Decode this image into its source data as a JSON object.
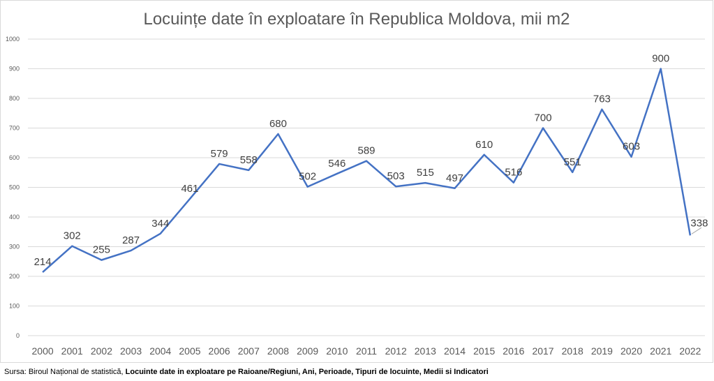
{
  "chart_data": {
    "type": "line",
    "title": "Locuințe date în exploatare în Republica Moldova, mii m2",
    "xlabel": "",
    "ylabel": "",
    "ylim": [
      0,
      1000
    ],
    "yticks": [
      "0",
      "100",
      "200",
      "300",
      "400",
      "500",
      "600",
      "700",
      "800",
      "900",
      "1000"
    ],
    "categories": [
      "2000",
      "2001",
      "2002",
      "2003",
      "2004",
      "2005",
      "2006",
      "2007",
      "2008",
      "2009",
      "2010",
      "2011",
      "2012",
      "2013",
      "2014",
      "2015",
      "2016",
      "2017",
      "2018",
      "2019",
      "2020",
      "2021",
      "2022"
    ],
    "series": [
      {
        "name": "Locuințe date în exploatare",
        "color": "#4472c4",
        "values": [
          214,
          302,
          255,
          287,
          344,
          461,
          579,
          558,
          680,
          502,
          546,
          589,
          503,
          515,
          497,
          610,
          516,
          700,
          551,
          763,
          603,
          900,
          338
        ]
      }
    ],
    "grid": true
  },
  "source": {
    "prefix": "Sursa: Biroul Național de statistică, ",
    "bold": "Locuinte date in exploatare pe Raioane/Regiuni, Ani, Perioade, Tipuri de locuinte, Medii si Indicatori"
  }
}
